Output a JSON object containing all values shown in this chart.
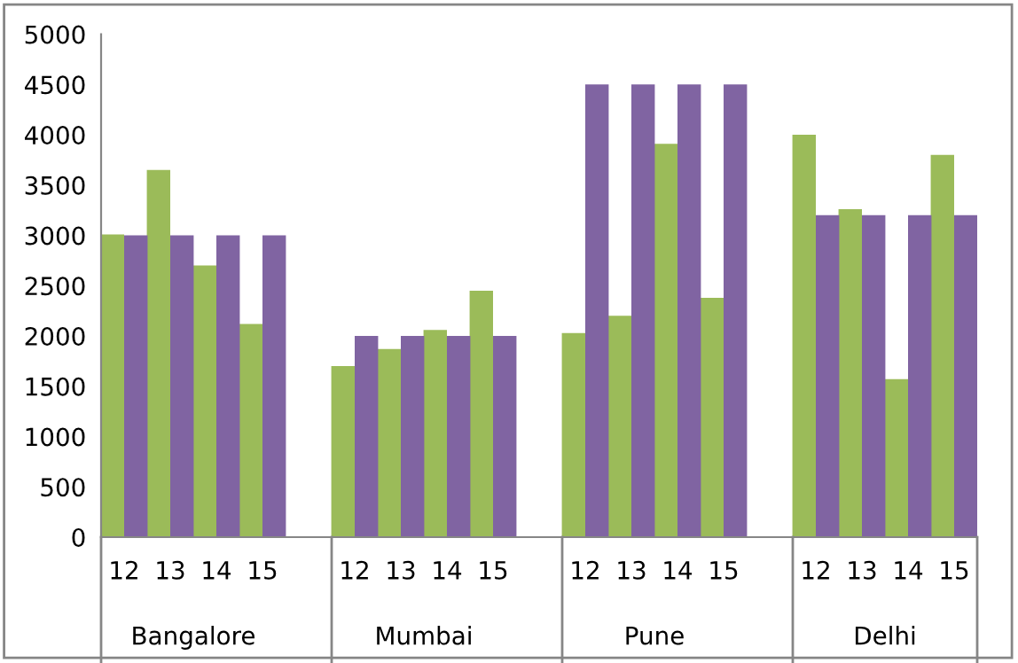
{
  "chart_data": {
    "type": "bar",
    "categories": [
      "12",
      "13",
      "14",
      "15",
      null,
      "12",
      "13",
      "14",
      "15",
      null,
      "12",
      "13",
      "14",
      "15",
      null,
      "12",
      "13",
      "14",
      "15"
    ],
    "series": [
      {
        "color": "#9bbb59",
        "values": [
          3010,
          3650,
          2700,
          2120,
          null,
          1700,
          1870,
          2060,
          2450,
          null,
          2030,
          2200,
          3910,
          2380,
          null,
          4000,
          3260,
          1570,
          3800
        ]
      },
      {
        "color": "#8064a2",
        "values": [
          3000,
          3000,
          3000,
          3000,
          null,
          2000,
          2000,
          2000,
          2000,
          null,
          4500,
          4500,
          4500,
          4500,
          null,
          3200,
          3200,
          3200,
          3200
        ]
      }
    ],
    "annotations": [
      "Bangalore",
      "Mumbai",
      "Pune",
      "Delhi"
    ],
    "ylim": [
      0,
      5000
    ],
    "yticks": [
      0,
      500,
      1000,
      1500,
      2000,
      2500,
      3000,
      3500,
      4000,
      4500,
      5000
    ],
    "grid": false,
    "legend": false
  }
}
